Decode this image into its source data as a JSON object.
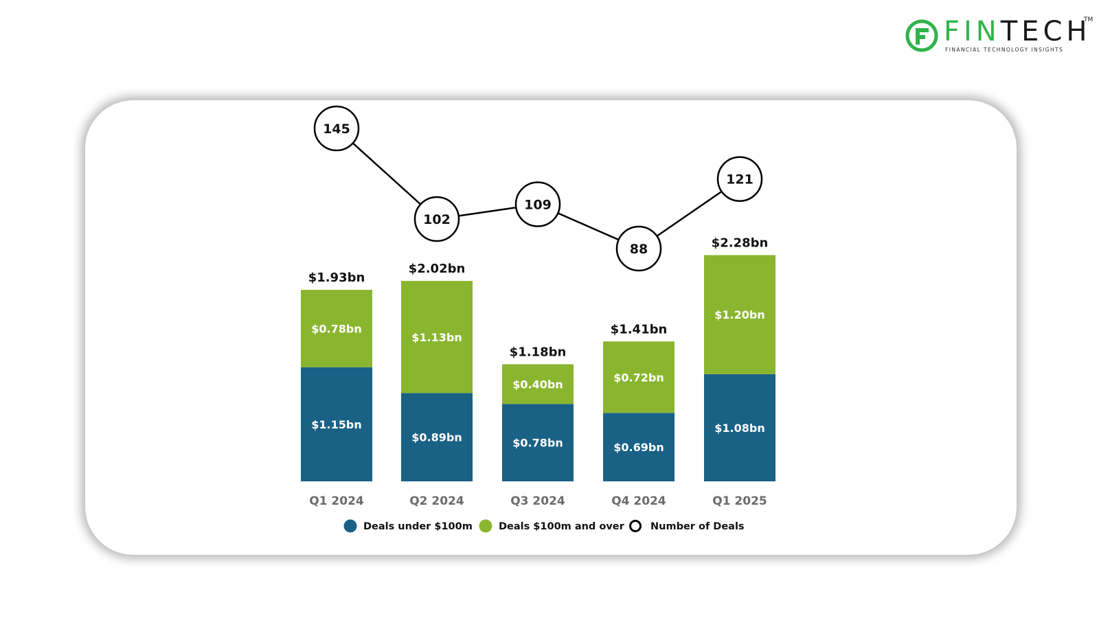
{
  "brand": {
    "name_part1": "FIN",
    "name_part2": "TECH",
    "trademark": "TM",
    "tagline": "FINANCIAL TECHNOLOGY INSIGHTS",
    "logo_icon": "fintech-f-logo-icon",
    "colors": {
      "green": "#2fb34a",
      "dark": "#1a1a1a"
    }
  },
  "chart_data": {
    "type": "bar",
    "stacked": true,
    "categories": [
      "Q1 2024",
      "Q2 2024",
      "Q3 2024",
      "Q4 2024",
      "Q1 2025"
    ],
    "series": [
      {
        "name": "Deals under $100m",
        "values": [
          1.15,
          0.89,
          0.78,
          0.69,
          1.08
        ],
        "labels": [
          "$1.15bn",
          "$0.89bn",
          "$0.78bn",
          "$0.69bn",
          "$1.08bn"
        ],
        "color": "#1a6186"
      },
      {
        "name": "Deals $100m and over",
        "values": [
          0.78,
          1.13,
          0.4,
          0.72,
          1.2
        ],
        "labels": [
          "$0.78bn",
          "$1.13bn",
          "$0.40bn",
          "$0.72bn",
          "$1.20bn"
        ],
        "color": "#8ab52f"
      }
    ],
    "totals": {
      "values": [
        1.93,
        2.02,
        1.18,
        1.41,
        2.28
      ],
      "labels": [
        "$1.93bn",
        "$2.02bn",
        "$1.18bn",
        "$1.41bn",
        "$2.28bn"
      ]
    },
    "line": {
      "name": "Number of Deals",
      "type": "line",
      "values": [
        145,
        102,
        109,
        88,
        121
      ],
      "labels": [
        "145",
        "102",
        "109",
        "88",
        "121"
      ],
      "color": "#000000"
    },
    "legend": {
      "position": "bottom-center",
      "items": [
        {
          "label": "Deals under $100m",
          "marker": "filled-circle",
          "color": "#1a6186"
        },
        {
          "label": "Deals $100m and over",
          "marker": "filled-circle",
          "color": "#8ab52f"
        },
        {
          "label": "Number of Deals",
          "marker": "hollow-circle",
          "color": "#000000"
        }
      ]
    },
    "ylim": [
      0,
      2.3
    ],
    "line_ylim": [
      80,
      150
    ],
    "grid": false,
    "axes_visible": false,
    "title": "",
    "xlabel": "",
    "ylabel": ""
  }
}
